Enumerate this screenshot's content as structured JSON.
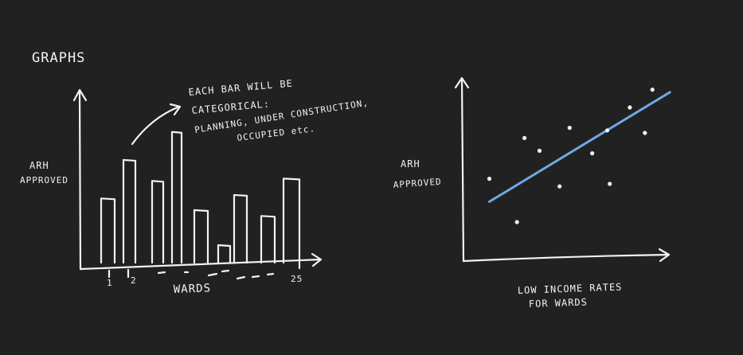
{
  "title": "GRAPHS",
  "colors": {
    "background": "#222121",
    "chalk": "#f2f2f2",
    "trend_line": "#6fa8e6"
  },
  "bar_chart": {
    "ylabel_line1": "ARH",
    "ylabel_line2": "APPROVED",
    "xlabel": "WARDS",
    "tick_first": "1",
    "tick_second": "2",
    "tick_last": "25",
    "note_lines": [
      "EACH BAR WILL BE",
      "CATEGORICAL:",
      "PLANNING, UNDER CONSTRUCTION,",
      "OCCUPIED etc."
    ]
  },
  "scatter_chart": {
    "ylabel_line1": "ARH",
    "ylabel_line2": "APPROVED",
    "xlabel_line1": "LOW INCOME RATES",
    "xlabel_line2": "FOR WARDS"
  },
  "chart_data": [
    {
      "type": "bar",
      "categories": [
        "1",
        "2",
        "",
        "",
        "",
        "",
        "",
        "",
        "",
        "25"
      ],
      "values": [
        55,
        88,
        70,
        112,
        45,
        15,
        58,
        40,
        72,
        0
      ],
      "xlabel": "WARDS",
      "ylabel": "ARH APPROVED",
      "ylim": [
        0,
        150
      ],
      "grid": false
    },
    {
      "type": "scatter",
      "x": [
        1.0,
        2.1,
        2.4,
        3.0,
        3.8,
        4.2,
        5.1,
        5.7,
        5.8,
        6.6,
        7.2,
        7.5
      ],
      "y": [
        3.2,
        1.5,
        4.8,
        4.3,
        2.9,
        5.2,
        4.2,
        5.1,
        3.0,
        6.0,
        5.0,
        6.7
      ],
      "trend_line": {
        "x": [
          1.0,
          8.2
        ],
        "y": [
          2.3,
          6.6
        ]
      },
      "xlabel": "LOW INCOME RATES FOR WARDS",
      "ylabel": "ARH APPROVED",
      "grid": false
    }
  ]
}
